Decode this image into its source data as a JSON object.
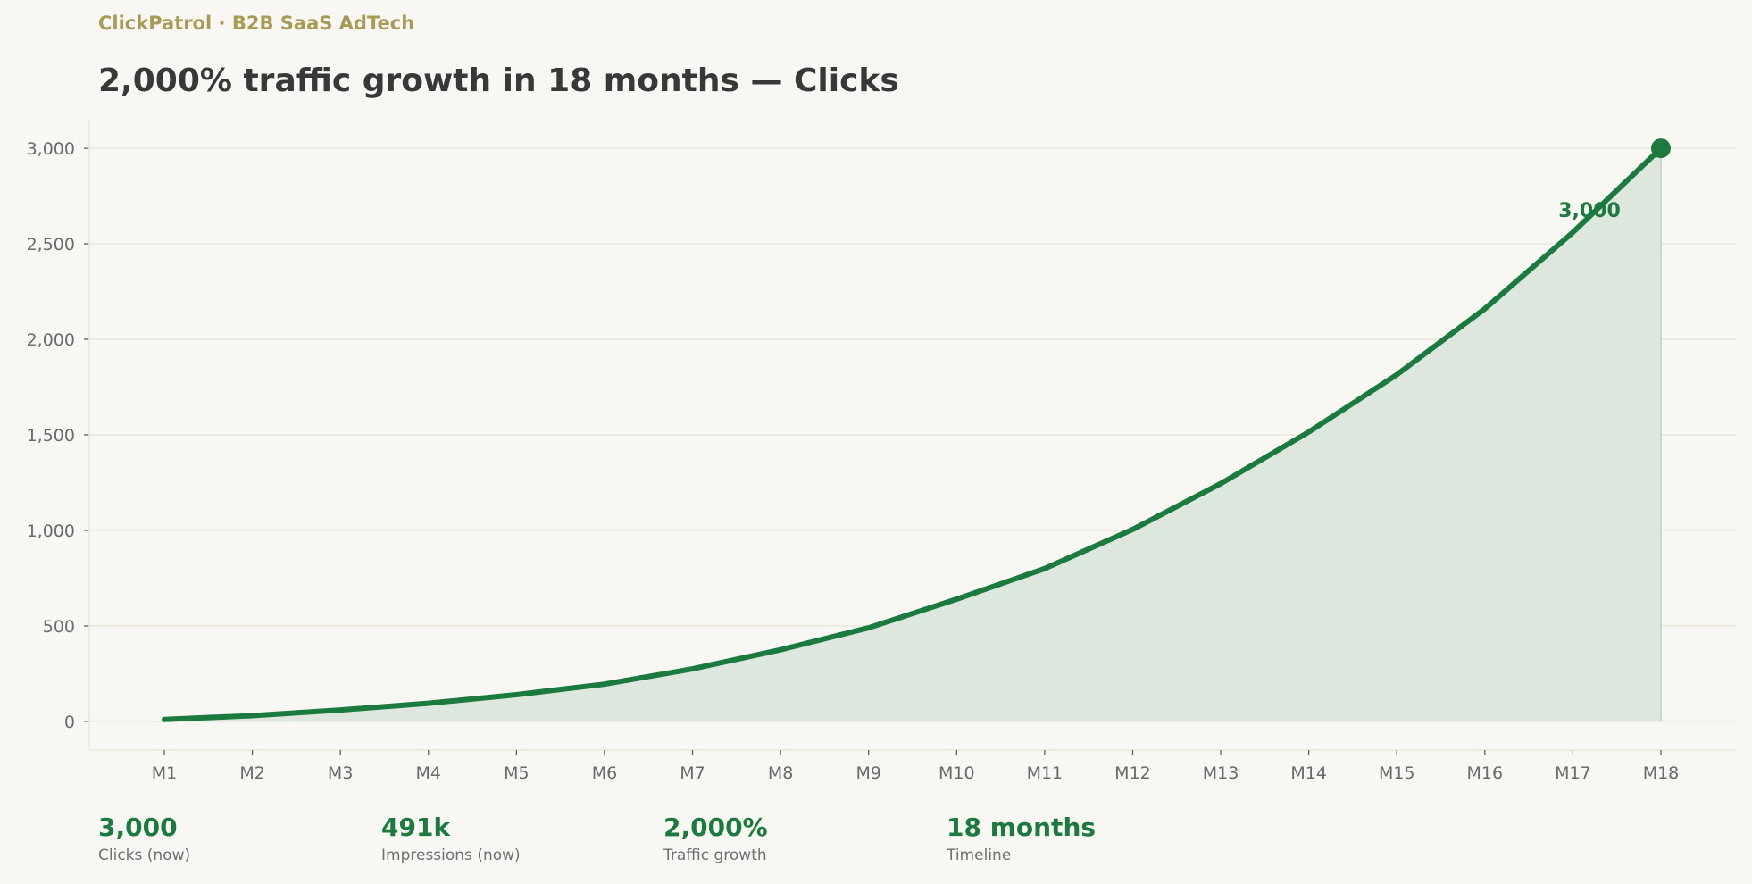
{
  "header": {
    "eyebrow": "ClickPatrol · B2B SaaS AdTech",
    "title": "2,000% traffic growth in 18 months — Clicks"
  },
  "chart_data": {
    "type": "area",
    "title": "2,000% traffic growth in 18 months — Clicks",
    "xlabel": "",
    "ylabel": "",
    "categories": [
      "M1",
      "M2",
      "M3",
      "M4",
      "M5",
      "M6",
      "M7",
      "M8",
      "M9",
      "M10",
      "M11",
      "M12",
      "M13",
      "M14",
      "M15",
      "M16",
      "M17",
      "M18"
    ],
    "series": [
      {
        "values": [
          10,
          30,
          60,
          95,
          140,
          195,
          275,
          375,
          490,
          640,
          800,
          1005,
          1245,
          1515,
          1815,
          2160,
          2560,
          3000
        ]
      }
    ],
    "ylim": [
      -150,
      3150
    ],
    "yticks": [
      0,
      500,
      1000,
      1500,
      2000,
      2500,
      3000
    ],
    "ytick_labels": [
      "0",
      "500",
      "1,000",
      "1,500",
      "2,000",
      "2,500",
      "3,000"
    ],
    "grid": true,
    "annotation": {
      "category": "M18",
      "label": "3,000"
    },
    "colors": {
      "line": "#1b7a3e",
      "fill": "#dde7dd",
      "grid": "#e9e7da"
    }
  },
  "kpis": [
    {
      "value": "3,000",
      "label": "Clicks (now)"
    },
    {
      "value": "491k",
      "label": "Impressions (now)"
    },
    {
      "value": "2,000%",
      "label": "Traffic growth"
    },
    {
      "value": "18 months",
      "label": "Timeline"
    }
  ]
}
